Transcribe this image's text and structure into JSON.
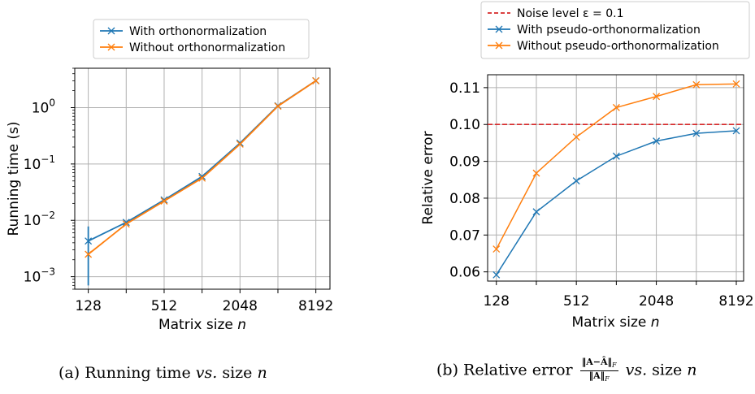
{
  "chart_data": [
    {
      "type": "line",
      "xscale": "log2",
      "yscale": "log10",
      "x": [
        128,
        256,
        512,
        1024,
        2048,
        4096,
        8192
      ],
      "xticks": [
        "128",
        "512",
        "2048",
        "8192"
      ],
      "yticks": [
        "10^-3",
        "10^-2",
        "10^-1",
        "10^0"
      ],
      "xlabel": "Matrix size n",
      "ylabel": "Running time (s)",
      "ylim": [
        0.0006,
        5
      ],
      "grid": true,
      "legend_position": "above",
      "series": [
        {
          "name": "With orthonormalization",
          "color": "#1f77b4",
          "marker": "x",
          "values": [
            0.0043,
            0.0092,
            0.023,
            0.06,
            0.235,
            1.08,
            3.0
          ],
          "errorbar_at_first": [
            0.0007,
            0.0078
          ]
        },
        {
          "name": "Without orthonormalization",
          "color": "#ff7f0e",
          "marker": "x",
          "values": [
            0.0025,
            0.0086,
            0.022,
            0.056,
            0.225,
            1.06,
            3.0
          ]
        }
      ]
    },
    {
      "type": "line",
      "xscale": "log2",
      "x": [
        128,
        256,
        512,
        1024,
        2048,
        4096,
        8192
      ],
      "xticks": [
        "128",
        "512",
        "2048",
        "8192"
      ],
      "yticks": [
        "0.06",
        "0.07",
        "0.08",
        "0.09",
        "0.10",
        "0.11"
      ],
      "xlabel": "Matrix size n",
      "ylabel": "Relative error",
      "ylim": [
        0.0575,
        0.1135
      ],
      "grid": true,
      "legend_position": "above",
      "reference_line": {
        "name": "Noise level ε = 0.1",
        "value": 0.1,
        "color": "#d62728",
        "style": "dashed"
      },
      "series": [
        {
          "name": "With pseudo-orthonormalization",
          "color": "#1f77b4",
          "marker": "x",
          "values": [
            0.0592,
            0.0763,
            0.0847,
            0.0914,
            0.0955,
            0.0976,
            0.0983
          ]
        },
        {
          "name": "Without pseudo-orthonormalization",
          "color": "#ff7f0e",
          "marker": "x",
          "values": [
            0.0662,
            0.0868,
            0.0966,
            0.1046,
            0.1076,
            0.1108,
            0.111
          ]
        }
      ]
    }
  ],
  "captions": {
    "a": {
      "prefix": "(a) Running time ",
      "vs": "vs.",
      "suffix": " size "
    },
    "b": {
      "prefix": "(b) Relative error ",
      "frac_num": "‖A−Â‖",
      "frac_den": "‖A‖",
      "vs": "vs.",
      "suffix": " size "
    }
  }
}
